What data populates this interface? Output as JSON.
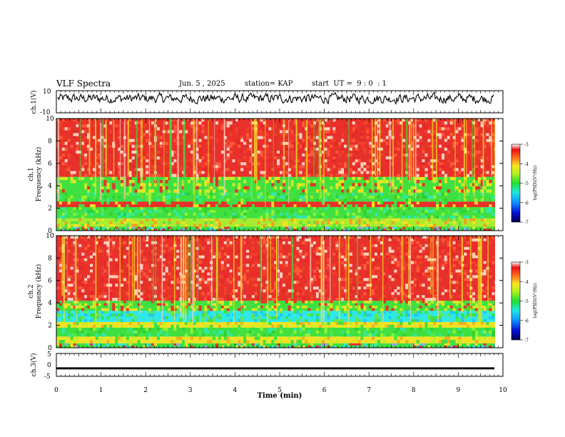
{
  "header": {
    "title": "VLF Spectra",
    "date": "Jun. 5 , 2025",
    "station": "station= KAP",
    "start_ut": "start  UT =  9 : 0  : 1"
  },
  "colors": {
    "spectrum_red": "#e8312a",
    "spectrum_yellow": "#f2e224",
    "spectrum_green": "#3fe040",
    "spectrum_cyan": "#2fe8e8",
    "spectrum_blue": "#1f4bd6",
    "spectrum_navy": "#000060"
  },
  "chart_data": [
    {
      "type": "line",
      "panel": "ch.1 waveform",
      "ylabel": "ch.1(V)",
      "ylim": [
        -10,
        10
      ],
      "ytick_labels": [
        "10",
        "-10"
      ],
      "xlim": [
        0,
        10
      ],
      "description_values": {
        "mean": 3,
        "noise_amplitude": 4
      }
    },
    {
      "type": "heatmap",
      "panel": "ch.1 spectrogram",
      "ylabel_channel": "ch.1",
      "ylabel": "Frequency  (kHz)",
      "ylim": [
        0,
        10
      ],
      "ytick_labels": [
        "0",
        "2",
        "4",
        "6",
        "8",
        "10"
      ],
      "xlim": [
        0,
        10
      ],
      "bands_khz": [
        {
          "from": 0.0,
          "to": 0.35,
          "level": "mixed"
        },
        {
          "from": 0.35,
          "to": 1.1,
          "level": "yellow-green"
        },
        {
          "from": 1.1,
          "to": 2.1,
          "level": "green"
        },
        {
          "from": 2.1,
          "to": 2.6,
          "level": "red-lines"
        },
        {
          "from": 2.6,
          "to": 3.4,
          "level": "green"
        },
        {
          "from": 3.4,
          "to": 4.8,
          "level": "green-yellow"
        },
        {
          "from": 4.8,
          "to": 10.0,
          "level": "red"
        }
      ],
      "colorbar": {
        "label": "log(PSD)(V²/Hz)",
        "ticks": [
          "-3",
          "-4",
          "-5",
          "-6",
          "-7"
        ],
        "range": [
          -7,
          -3
        ]
      }
    },
    {
      "type": "heatmap",
      "panel": "ch.2 spectrogram",
      "ylabel_channel": "ch.2",
      "ylabel": "Frequency  (kHz)",
      "ylim": [
        0,
        10
      ],
      "ytick_labels": [
        "0",
        "2",
        "4",
        "6",
        "8",
        "10"
      ],
      "xlim": [
        0,
        10
      ],
      "bands_khz": [
        {
          "from": 0.0,
          "to": 0.4,
          "level": "mixed"
        },
        {
          "from": 0.4,
          "to": 1.0,
          "level": "yellow"
        },
        {
          "from": 1.0,
          "to": 1.8,
          "level": "green"
        },
        {
          "from": 1.8,
          "to": 2.3,
          "level": "yellow"
        },
        {
          "from": 2.3,
          "to": 3.3,
          "level": "cyan-green"
        },
        {
          "from": 3.3,
          "to": 4.2,
          "level": "green-yellow"
        },
        {
          "from": 4.2,
          "to": 10.0,
          "level": "red"
        }
      ],
      "colorbar": {
        "label": "log(PSD)(V²/Hz)",
        "ticks": [
          "-3",
          "-4",
          "-5",
          "-6",
          "-7"
        ],
        "range": [
          -7,
          -3
        ]
      }
    },
    {
      "type": "line",
      "panel": "ch.3 waveform",
      "ylabel": "ch.3(V)",
      "ylim": [
        -5,
        5
      ],
      "ytick_labels": [
        "5",
        "0",
        "-5"
      ],
      "xlim": [
        0,
        10
      ],
      "description_values": {
        "mean": -1.5,
        "band_width": 0.9
      }
    }
  ],
  "x_axis": {
    "label": "Time  (min)",
    "tick_labels": [
      "0",
      "1",
      "2",
      "3",
      "4",
      "5",
      "6",
      "7",
      "8",
      "9",
      "10"
    ]
  }
}
